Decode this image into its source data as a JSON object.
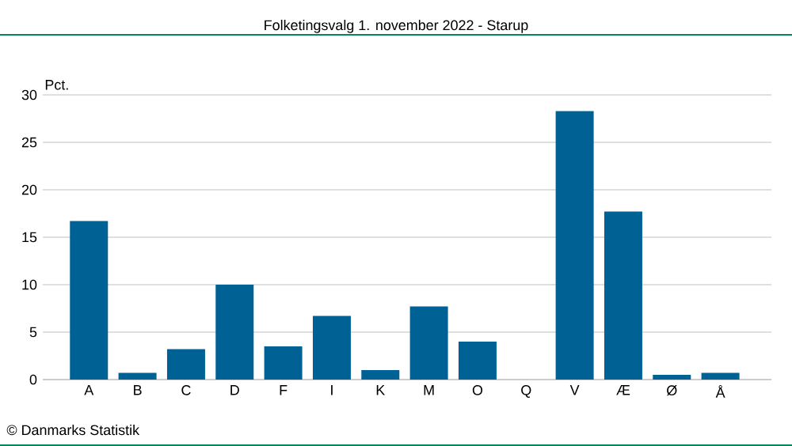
{
  "chart_data": {
    "type": "bar",
    "title": "Folketingsvalg 1. november 2022 - Starup",
    "ylabel": "Pct.",
    "categories": [
      "A",
      "B",
      "C",
      "D",
      "F",
      "I",
      "K",
      "M",
      "O",
      "Q",
      "V",
      "Æ",
      "Ø",
      "Å"
    ],
    "values": [
      16.7,
      0.7,
      3.2,
      10.0,
      3.5,
      6.7,
      1.0,
      7.7,
      4.0,
      0,
      28.3,
      17.7,
      0.5,
      0.7
    ],
    "color": "#006294",
    "ylim": [
      0,
      30
    ],
    "yticks": [
      0,
      5,
      10,
      15,
      20,
      25,
      30
    ],
    "grid": "y",
    "annotations": [
      "© Danmarks Statistik"
    ]
  }
}
